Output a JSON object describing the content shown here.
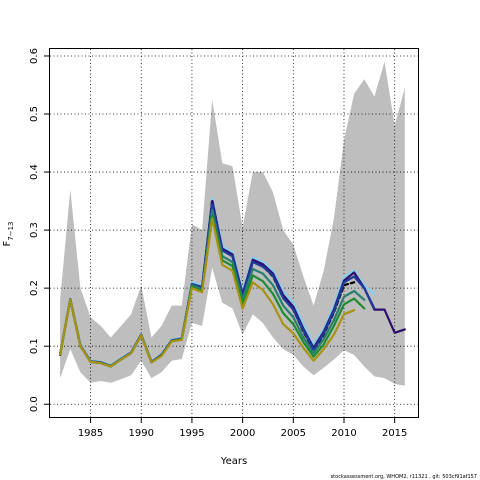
{
  "chart_data": {
    "type": "line",
    "xlabel": "Years",
    "ylabel": {
      "main": "F",
      "subscript": "7−13"
    },
    "footer": "stockassessment.org, WHOM2, r11321 , git: 503cf91af157",
    "xlim": [
      1981,
      2017.3
    ],
    "ylim": [
      -0.022,
      0.612
    ],
    "xticks": [
      1985,
      1990,
      1995,
      2000,
      2005,
      2010,
      2015
    ],
    "yticks": [
      0.0,
      0.1,
      0.2,
      0.3,
      0.4,
      0.5,
      0.6
    ],
    "ytick_labels": [
      "0.0",
      "0.1",
      "0.2",
      "0.3",
      "0.4",
      "0.5",
      "0.6"
    ],
    "grid": true,
    "confidence_band": {
      "color": "#bebebe",
      "x": [
        1982,
        1983,
        1984,
        1985,
        1986,
        1987,
        1988,
        1989,
        1990,
        1991,
        1992,
        1993,
        1994,
        1995,
        1996,
        1997,
        1998,
        1999,
        2000,
        2001,
        2002,
        2003,
        2004,
        2005,
        2006,
        2007,
        2008,
        2009,
        2010,
        2011,
        2012,
        2013,
        2014,
        2015,
        2016
      ],
      "upper": [
        0.18,
        0.37,
        0.2,
        0.15,
        0.135,
        0.115,
        0.135,
        0.155,
        0.205,
        0.115,
        0.135,
        0.17,
        0.17,
        0.31,
        0.3,
        0.525,
        0.415,
        0.41,
        0.305,
        0.4,
        0.4,
        0.365,
        0.3,
        0.275,
        0.22,
        0.17,
        0.23,
        0.32,
        0.455,
        0.535,
        0.56,
        0.53,
        0.59,
        0.48,
        0.545
      ],
      "lower": [
        0.045,
        0.095,
        0.055,
        0.037,
        0.04,
        0.037,
        0.043,
        0.05,
        0.075,
        0.045,
        0.055,
        0.075,
        0.078,
        0.14,
        0.135,
        0.235,
        0.175,
        0.165,
        0.12,
        0.155,
        0.14,
        0.115,
        0.095,
        0.085,
        0.065,
        0.05,
        0.063,
        0.077,
        0.093,
        0.085,
        0.065,
        0.048,
        0.045,
        0.035,
        0.032
      ]
    },
    "series": [
      {
        "color": "#87ceeb",
        "values": [
          [
            1982,
            0.087
          ],
          [
            1983,
            0.182
          ],
          [
            1984,
            0.102
          ],
          [
            1985,
            0.075
          ],
          [
            1986,
            0.073
          ],
          [
            1987,
            0.067
          ],
          [
            1988,
            0.079
          ],
          [
            1989,
            0.09
          ],
          [
            1990,
            0.121
          ],
          [
            1991,
            0.074
          ],
          [
            1992,
            0.086
          ],
          [
            1993,
            0.111
          ],
          [
            1994,
            0.114
          ],
          [
            1995,
            0.21
          ],
          [
            1996,
            0.205
          ],
          [
            1997,
            0.355
          ],
          [
            1998,
            0.272
          ],
          [
            1999,
            0.262
          ],
          [
            2000,
            0.195
          ],
          [
            2001,
            0.253
          ],
          [
            2002,
            0.245
          ],
          [
            2003,
            0.23
          ],
          [
            2004,
            0.195
          ],
          [
            2005,
            0.175
          ],
          [
            2006,
            0.138
          ],
          [
            2007,
            0.102
          ],
          [
            2008,
            0.13
          ],
          [
            2009,
            0.17
          ],
          [
            2010,
            0.22
          ],
          [
            2011,
            0.23
          ],
          [
            2012,
            0.205
          ],
          [
            2013,
            0.19
          ]
        ]
      },
      {
        "color": "#000000",
        "dashed": true,
        "values": [
          [
            1982,
            0.085
          ],
          [
            1983,
            0.18
          ],
          [
            1984,
            0.1
          ],
          [
            1985,
            0.073
          ],
          [
            1986,
            0.071
          ],
          [
            1987,
            0.065
          ],
          [
            1988,
            0.077
          ],
          [
            1989,
            0.088
          ],
          [
            1990,
            0.119
          ],
          [
            1991,
            0.072
          ],
          [
            1992,
            0.084
          ],
          [
            1993,
            0.109
          ],
          [
            1994,
            0.112
          ],
          [
            1995,
            0.205
          ],
          [
            1996,
            0.2
          ],
          [
            1997,
            0.352
          ],
          [
            1998,
            0.265
          ],
          [
            1999,
            0.255
          ],
          [
            2000,
            0.185
          ],
          [
            2001,
            0.245
          ],
          [
            2002,
            0.238
          ],
          [
            2003,
            0.22
          ],
          [
            2004,
            0.183
          ],
          [
            2005,
            0.163
          ],
          [
            2006,
            0.125
          ],
          [
            2007,
            0.093
          ],
          [
            2008,
            0.12
          ],
          [
            2009,
            0.158
          ],
          [
            2010,
            0.205
          ],
          [
            2011,
            0.21
          ]
        ]
      },
      {
        "color": "#2e0f6e",
        "values": [
          [
            1982,
            0.086
          ],
          [
            1983,
            0.181
          ],
          [
            1984,
            0.101
          ],
          [
            1985,
            0.074
          ],
          [
            1986,
            0.072
          ],
          [
            1987,
            0.066
          ],
          [
            1988,
            0.078
          ],
          [
            1989,
            0.089
          ],
          [
            1990,
            0.12
          ],
          [
            1991,
            0.073
          ],
          [
            1992,
            0.085
          ],
          [
            1993,
            0.11
          ],
          [
            1994,
            0.113
          ],
          [
            1995,
            0.207
          ],
          [
            1996,
            0.202
          ],
          [
            1997,
            0.35
          ],
          [
            1998,
            0.268
          ],
          [
            1999,
            0.258
          ],
          [
            2000,
            0.19
          ],
          [
            2001,
            0.249
          ],
          [
            2002,
            0.241
          ],
          [
            2003,
            0.225
          ],
          [
            2004,
            0.188
          ],
          [
            2005,
            0.168
          ],
          [
            2006,
            0.13
          ],
          [
            2007,
            0.097
          ],
          [
            2008,
            0.125
          ],
          [
            2009,
            0.163
          ],
          [
            2010,
            0.213
          ],
          [
            2011,
            0.227
          ],
          [
            2012,
            0.2
          ],
          [
            2013,
            0.163
          ],
          [
            2014,
            0.163
          ],
          [
            2015,
            0.123
          ],
          [
            2016,
            0.129
          ]
        ]
      },
      {
        "color": "#1f3a9b",
        "values": [
          [
            1982,
            0.086
          ],
          [
            1983,
            0.181
          ],
          [
            1984,
            0.101
          ],
          [
            1985,
            0.074
          ],
          [
            1986,
            0.072
          ],
          [
            1987,
            0.066
          ],
          [
            1988,
            0.078
          ],
          [
            1989,
            0.089
          ],
          [
            1990,
            0.12
          ],
          [
            1991,
            0.073
          ],
          [
            1992,
            0.085
          ],
          [
            1993,
            0.11
          ],
          [
            1994,
            0.113
          ],
          [
            1995,
            0.207
          ],
          [
            1996,
            0.202
          ],
          [
            1997,
            0.345
          ],
          [
            1998,
            0.265
          ],
          [
            1999,
            0.255
          ],
          [
            2000,
            0.187
          ],
          [
            2001,
            0.245
          ],
          [
            2002,
            0.237
          ],
          [
            2003,
            0.222
          ],
          [
            2004,
            0.183
          ],
          [
            2005,
            0.163
          ],
          [
            2006,
            0.127
          ],
          [
            2007,
            0.094
          ],
          [
            2008,
            0.122
          ],
          [
            2009,
            0.16
          ],
          [
            2010,
            0.21
          ],
          [
            2011,
            0.22
          ],
          [
            2012,
            0.2
          ],
          [
            2013,
            0.165
          ]
        ]
      },
      {
        "color": "#2a7f6f",
        "values": [
          [
            1982,
            0.086
          ],
          [
            1983,
            0.181
          ],
          [
            1984,
            0.1
          ],
          [
            1985,
            0.073
          ],
          [
            1986,
            0.071
          ],
          [
            1987,
            0.066
          ],
          [
            1988,
            0.077
          ],
          [
            1989,
            0.088
          ],
          [
            1990,
            0.119
          ],
          [
            1991,
            0.072
          ],
          [
            1992,
            0.084
          ],
          [
            1993,
            0.109
          ],
          [
            1994,
            0.112
          ],
          [
            1995,
            0.205
          ],
          [
            1996,
            0.198
          ],
          [
            1997,
            0.335
          ],
          [
            1998,
            0.255
          ],
          [
            1999,
            0.245
          ],
          [
            2000,
            0.18
          ],
          [
            2001,
            0.233
          ],
          [
            2002,
            0.225
          ],
          [
            2003,
            0.205
          ],
          [
            2004,
            0.17
          ],
          [
            2005,
            0.15
          ],
          [
            2006,
            0.115
          ],
          [
            2007,
            0.088
          ],
          [
            2008,
            0.112
          ],
          [
            2009,
            0.145
          ],
          [
            2010,
            0.185
          ],
          [
            2011,
            0.195
          ],
          [
            2012,
            0.18
          ]
        ]
      },
      {
        "color": "#1e8c2e",
        "values": [
          [
            1982,
            0.086
          ],
          [
            1983,
            0.18
          ],
          [
            1984,
            0.1
          ],
          [
            1985,
            0.073
          ],
          [
            1986,
            0.071
          ],
          [
            1987,
            0.065
          ],
          [
            1988,
            0.077
          ],
          [
            1989,
            0.088
          ],
          [
            1990,
            0.119
          ],
          [
            1991,
            0.072
          ],
          [
            1992,
            0.084
          ],
          [
            1993,
            0.109
          ],
          [
            1994,
            0.112
          ],
          [
            1995,
            0.203
          ],
          [
            1996,
            0.196
          ],
          [
            1997,
            0.325
          ],
          [
            1998,
            0.248
          ],
          [
            1999,
            0.238
          ],
          [
            2000,
            0.173
          ],
          [
            2001,
            0.222
          ],
          [
            2002,
            0.212
          ],
          [
            2003,
            0.19
          ],
          [
            2004,
            0.157
          ],
          [
            2005,
            0.138
          ],
          [
            2006,
            0.107
          ],
          [
            2007,
            0.082
          ],
          [
            2008,
            0.103
          ],
          [
            2009,
            0.135
          ],
          [
            2010,
            0.172
          ],
          [
            2011,
            0.182
          ],
          [
            2012,
            0.165
          ]
        ]
      },
      {
        "color": "#a89214",
        "values": [
          [
            1982,
            0.086
          ],
          [
            1983,
            0.18
          ],
          [
            1984,
            0.1
          ],
          [
            1985,
            0.073
          ],
          [
            1986,
            0.071
          ],
          [
            1987,
            0.065
          ],
          [
            1988,
            0.077
          ],
          [
            1989,
            0.088
          ],
          [
            1990,
            0.119
          ],
          [
            1991,
            0.072
          ],
          [
            1992,
            0.083
          ],
          [
            1993,
            0.108
          ],
          [
            1994,
            0.111
          ],
          [
            1995,
            0.2
          ],
          [
            1996,
            0.193
          ],
          [
            1997,
            0.32
          ],
          [
            1998,
            0.24
          ],
          [
            1999,
            0.23
          ],
          [
            2000,
            0.165
          ],
          [
            2001,
            0.21
          ],
          [
            2002,
            0.197
          ],
          [
            2003,
            0.172
          ],
          [
            2004,
            0.138
          ],
          [
            2005,
            0.122
          ],
          [
            2006,
            0.097
          ],
          [
            2007,
            0.075
          ],
          [
            2008,
            0.095
          ],
          [
            2009,
            0.12
          ],
          [
            2010,
            0.155
          ],
          [
            2011,
            0.162
          ]
        ]
      }
    ]
  }
}
